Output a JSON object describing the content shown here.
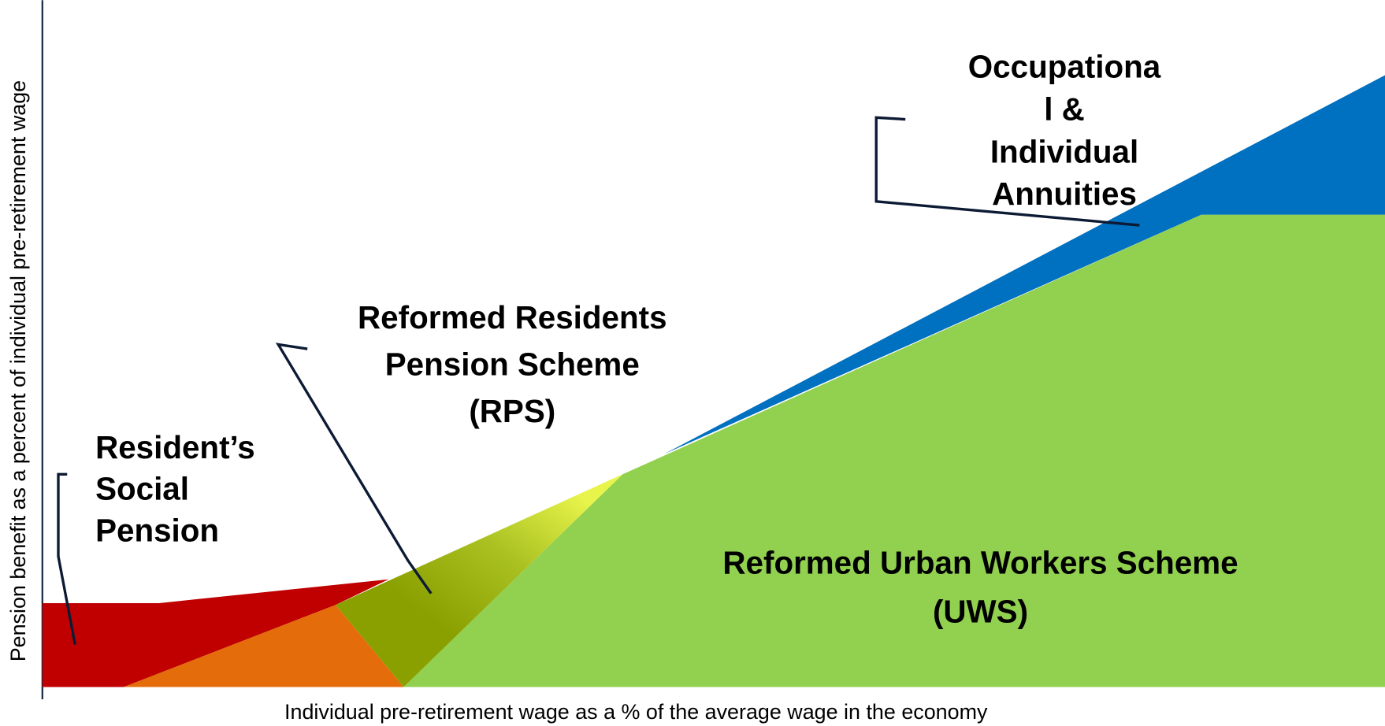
{
  "axes": {
    "y_label": "Pension benefit as a percent of individual pre-retirement wage",
    "x_label": "Individual pre-retirement wage as a % of the average wage in the economy"
  },
  "regions": [
    {
      "lines": [
        "Resident’s",
        "Social",
        "Pension"
      ]
    },
    {
      "lines": [
        "Reformed Residents",
        "Pension Scheme",
        "(RPS)"
      ]
    },
    {
      "lines": [
        "Occupationa",
        "l &",
        "Individual",
        "Annuities"
      ]
    },
    {
      "lines": [
        "Reformed Urban Workers Scheme",
        "(UWS)"
      ]
    }
  ]
}
